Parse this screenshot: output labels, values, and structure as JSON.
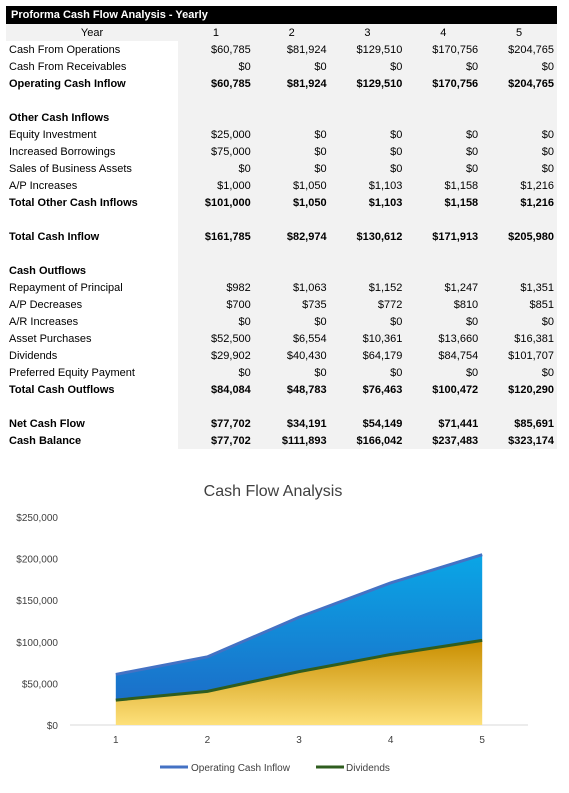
{
  "sheet": {
    "title": "Proforma Cash Flow Analysis - Yearly",
    "year_label": "Year",
    "years": [
      "1",
      "2",
      "3",
      "4",
      "5"
    ],
    "rows": [
      {
        "label": "Cash From Operations",
        "values": [
          "$60,785",
          "$81,924",
          "$129,510",
          "$170,756",
          "$204,765"
        ],
        "bold": false
      },
      {
        "label": "Cash From Receivables",
        "values": [
          "$0",
          "$0",
          "$0",
          "$0",
          "$0"
        ],
        "bold": false
      },
      {
        "label": "Operating Cash Inflow",
        "values": [
          "$60,785",
          "$81,924",
          "$129,510",
          "$170,756",
          "$204,765"
        ],
        "bold": true
      },
      {
        "label": "",
        "values": [
          "",
          "",
          "",
          "",
          ""
        ],
        "bold": false
      },
      {
        "label": "Other Cash Inflows",
        "values": [
          "",
          "",
          "",
          "",
          ""
        ],
        "bold": true
      },
      {
        "label": "Equity Investment",
        "values": [
          "$25,000",
          "$0",
          "$0",
          "$0",
          "$0"
        ],
        "bold": false
      },
      {
        "label": "Increased Borrowings",
        "values": [
          "$75,000",
          "$0",
          "$0",
          "$0",
          "$0"
        ],
        "bold": false
      },
      {
        "label": "Sales of Business Assets",
        "values": [
          "$0",
          "$0",
          "$0",
          "$0",
          "$0"
        ],
        "bold": false
      },
      {
        "label": "A/P Increases",
        "values": [
          "$1,000",
          "$1,050",
          "$1,103",
          "$1,158",
          "$1,216"
        ],
        "bold": false
      },
      {
        "label": "Total Other Cash Inflows",
        "values": [
          "$101,000",
          "$1,050",
          "$1,103",
          "$1,158",
          "$1,216"
        ],
        "bold": true
      },
      {
        "label": "",
        "values": [
          "",
          "",
          "",
          "",
          ""
        ],
        "bold": false
      },
      {
        "label": "Total Cash Inflow",
        "values": [
          "$161,785",
          "$82,974",
          "$130,612",
          "$171,913",
          "$205,980"
        ],
        "bold": true
      },
      {
        "label": "",
        "values": [
          "",
          "",
          "",
          "",
          ""
        ],
        "bold": false
      },
      {
        "label": "Cash Outflows",
        "values": [
          "",
          "",
          "",
          "",
          ""
        ],
        "bold": true
      },
      {
        "label": "Repayment of Principal",
        "values": [
          "$982",
          "$1,063",
          "$1,152",
          "$1,247",
          "$1,351"
        ],
        "bold": false
      },
      {
        "label": "A/P Decreases",
        "values": [
          "$700",
          "$735",
          "$772",
          "$810",
          "$851"
        ],
        "bold": false
      },
      {
        "label": "A/R Increases",
        "values": [
          "$0",
          "$0",
          "$0",
          "$0",
          "$0"
        ],
        "bold": false
      },
      {
        "label": "Asset Purchases",
        "values": [
          "$52,500",
          "$6,554",
          "$10,361",
          "$13,660",
          "$16,381"
        ],
        "bold": false
      },
      {
        "label": "Dividends",
        "values": [
          "$29,902",
          "$40,430",
          "$64,179",
          "$84,754",
          "$101,707"
        ],
        "bold": false
      },
      {
        "label": "Preferred Equity Payment",
        "values": [
          "$0",
          "$0",
          "$0",
          "$0",
          "$0"
        ],
        "bold": false
      },
      {
        "label": "Total Cash Outflows",
        "values": [
          "$84,084",
          "$48,783",
          "$76,463",
          "$100,472",
          "$120,290"
        ],
        "bold": true
      },
      {
        "label": "",
        "values": [
          "",
          "",
          "",
          "",
          ""
        ],
        "bold": false
      },
      {
        "label": "Net Cash Flow",
        "values": [
          "$77,702",
          "$34,191",
          "$54,149",
          "$71,441",
          "$85,691"
        ],
        "bold": true
      },
      {
        "label": "Cash Balance",
        "values": [
          "$77,702",
          "$111,893",
          "$166,042",
          "$237,483",
          "$323,174"
        ],
        "bold": true
      }
    ]
  },
  "colors": {
    "operating_fill": "#0aa6e6",
    "operating_line": "#4472c4",
    "dividends_fill": "#f0b810",
    "dividends_line": "#2f5d1f"
  },
  "chart_data": {
    "type": "area",
    "title": "Cash Flow Analysis",
    "categories": [
      "1",
      "2",
      "3",
      "4",
      "5"
    ],
    "series": [
      {
        "name": "Operating Cash Inflow",
        "values": [
          60785,
          81924,
          129510,
          170756,
          204765
        ]
      },
      {
        "name": "Dividends",
        "values": [
          29902,
          40430,
          64179,
          84754,
          101707
        ]
      }
    ],
    "ylim": [
      0,
      250000
    ],
    "yticks": [
      "$0",
      "$50,000",
      "$100,000",
      "$150,000",
      "$200,000",
      "$250,000"
    ],
    "ytick_values": [
      0,
      50000,
      100000,
      150000,
      200000,
      250000
    ],
    "grid": false,
    "legend": "bottom"
  }
}
